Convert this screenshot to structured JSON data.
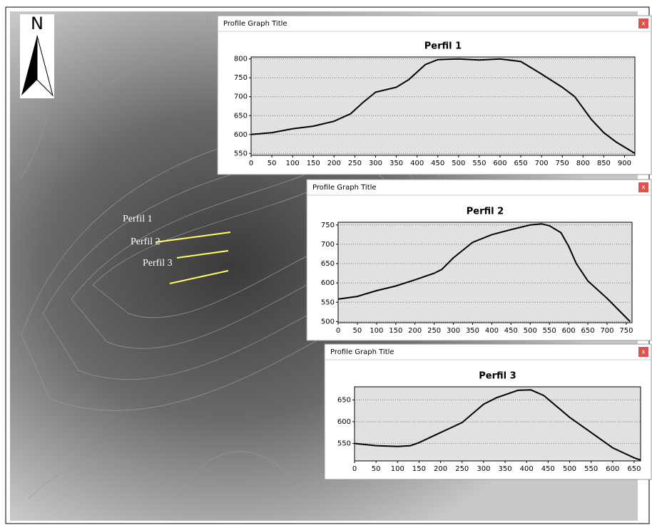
{
  "map": {
    "north_label": "N",
    "line_labels": [
      "Perfil 1",
      "Perfil 2",
      "Perfil 3"
    ]
  },
  "windows": [
    {
      "title": "Profile Graph Title",
      "close": "x"
    },
    {
      "title": "Profile Graph Title",
      "close": "x"
    },
    {
      "title": "Profile Graph Title",
      "close": "x"
    }
  ],
  "chart_data": [
    {
      "type": "line",
      "title": "Perfil 1",
      "color": "#000000",
      "x": [
        0,
        50,
        100,
        150,
        200,
        240,
        270,
        300,
        350,
        380,
        420,
        450,
        500,
        550,
        600,
        650,
        700,
        750,
        780,
        820,
        850,
        880,
        910,
        925
      ],
      "values": [
        600,
        605,
        615,
        622,
        635,
        655,
        685,
        712,
        725,
        745,
        785,
        798,
        800,
        797,
        800,
        793,
        760,
        725,
        700,
        640,
        605,
        580,
        560,
        550
      ],
      "xlim": [
        0,
        925
      ],
      "xticks": [
        0,
        50,
        100,
        150,
        200,
        250,
        300,
        350,
        400,
        450,
        500,
        550,
        600,
        650,
        700,
        750,
        800,
        850,
        900
      ],
      "ylim": [
        545,
        805
      ],
      "yticks": [
        550,
        600,
        650,
        700,
        750,
        800
      ],
      "grid": true
    },
    {
      "type": "line",
      "title": "Perfil 2",
      "color": "#000000",
      "x": [
        0,
        50,
        100,
        150,
        200,
        250,
        270,
        300,
        350,
        400,
        450,
        500,
        530,
        550,
        580,
        600,
        620,
        650,
        700,
        740,
        760
      ],
      "values": [
        558,
        565,
        580,
        592,
        608,
        625,
        635,
        665,
        705,
        725,
        738,
        750,
        753,
        748,
        730,
        695,
        650,
        605,
        560,
        520,
        500
      ],
      "xlim": [
        0,
        765
      ],
      "xticks": [
        0,
        50,
        100,
        150,
        200,
        250,
        300,
        350,
        400,
        450,
        500,
        550,
        600,
        650,
        700,
        750
      ],
      "ylim": [
        497,
        757
      ],
      "yticks": [
        500,
        550,
        600,
        650,
        700,
        750
      ],
      "grid": true
    },
    {
      "type": "line",
      "title": "Perfil 3",
      "color": "#000000",
      "x": [
        0,
        50,
        100,
        130,
        150,
        200,
        250,
        300,
        330,
        380,
        410,
        440,
        500,
        550,
        600,
        650,
        665
      ],
      "values": [
        550,
        545,
        543,
        545,
        552,
        575,
        598,
        640,
        655,
        672,
        673,
        660,
        610,
        575,
        540,
        517,
        512
      ],
      "xlim": [
        0,
        665
      ],
      "xticks": [
        0,
        50,
        100,
        150,
        200,
        250,
        300,
        350,
        400,
        450,
        500,
        550,
        600,
        650
      ],
      "ylim": [
        510,
        680
      ],
      "yticks": [
        550,
        600,
        650
      ],
      "grid": true
    }
  ]
}
